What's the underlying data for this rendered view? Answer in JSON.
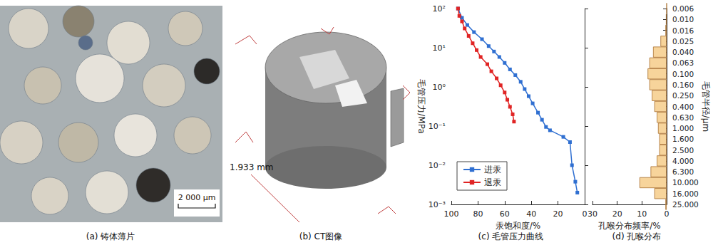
{
  "panels": [
    {
      "caption": "(a) 铸体薄片",
      "scale_bar": "2 000 μm"
    },
    {
      "caption": "(b) CT图像",
      "dimension": "1.933 mm"
    }
  ],
  "chart_data": [
    {
      "type": "line",
      "title": "(c) 毛管压力曲线",
      "x_label": "汞饱和度/%",
      "y_label": "毛管压力/MPa",
      "log": "y",
      "xlim": [
        100,
        0
      ],
      "xticks": [
        100,
        80,
        60,
        40,
        20,
        0
      ],
      "ylim": [
        0.001,
        100
      ],
      "yticks": [
        {
          "value": 0.001,
          "label": "10⁻³"
        },
        {
          "value": 0.01,
          "label": "10⁻²"
        },
        {
          "value": 0.1,
          "label": "10⁻¹"
        },
        {
          "value": 1,
          "label": "10⁰"
        },
        {
          "value": 10,
          "label": "10¹"
        },
        {
          "value": 100,
          "label": "10²"
        }
      ],
      "grid": false,
      "legend": "lower left",
      "series": [
        {
          "name": "进汞",
          "color": "#2f6fd1",
          "marker": "square",
          "line_style": "solid",
          "x": [
            95,
            92,
            88,
            83,
            77,
            72,
            68,
            64,
            60,
            56,
            52,
            48,
            45,
            42,
            39,
            35,
            32,
            29,
            26,
            16,
            11,
            9.5,
            7,
            5.5
          ],
          "values": [
            100,
            58,
            38,
            25,
            16.5,
            11,
            8,
            5.8,
            4.1,
            2.8,
            2.0,
            1.35,
            0.88,
            0.58,
            0.38,
            0.22,
            0.145,
            0.095,
            0.078,
            0.053,
            0.039,
            0.01,
            0.0038,
            0.002
          ]
        },
        {
          "name": "退汞",
          "color": "#e02424",
          "marker": "square",
          "line_style": "solid",
          "x": [
            95,
            94,
            92,
            90,
            87,
            84,
            81,
            78,
            73,
            70,
            66,
            63,
            60,
            58,
            56,
            54,
            53
          ],
          "values": [
            100,
            65,
            47,
            31,
            20,
            13,
            8.7,
            5.8,
            3.8,
            2.5,
            1.65,
            1.1,
            0.72,
            0.47,
            0.31,
            0.2,
            0.13
          ]
        }
      ]
    },
    {
      "type": "bar",
      "title": "(d) 孔喉分布",
      "orientation": "horizontal",
      "x_label": "孔喉分布频率/%",
      "y_label": "毛管半径/μm",
      "xlim": [
        30,
        0
      ],
      "xticks": [
        30,
        20,
        10,
        0
      ],
      "categories": [
        "0.006",
        "0.010",
        "0.016",
        "0.025",
        "0.040",
        "0.063",
        "0.100",
        "0.160",
        "0.250",
        "0.400",
        "0.630",
        "1.000",
        "1.600",
        "2.500",
        "4.000",
        "6.300",
        "10.000",
        "16.000",
        "25.000"
      ],
      "values": [
        0,
        0.3,
        0.5,
        2.5,
        5.5,
        7,
        7.7,
        7,
        6,
        5,
        4,
        3.5,
        3,
        3,
        4,
        6.5,
        11,
        5,
        0.5
      ],
      "color": "#f7d49b",
      "grid": false
    }
  ]
}
